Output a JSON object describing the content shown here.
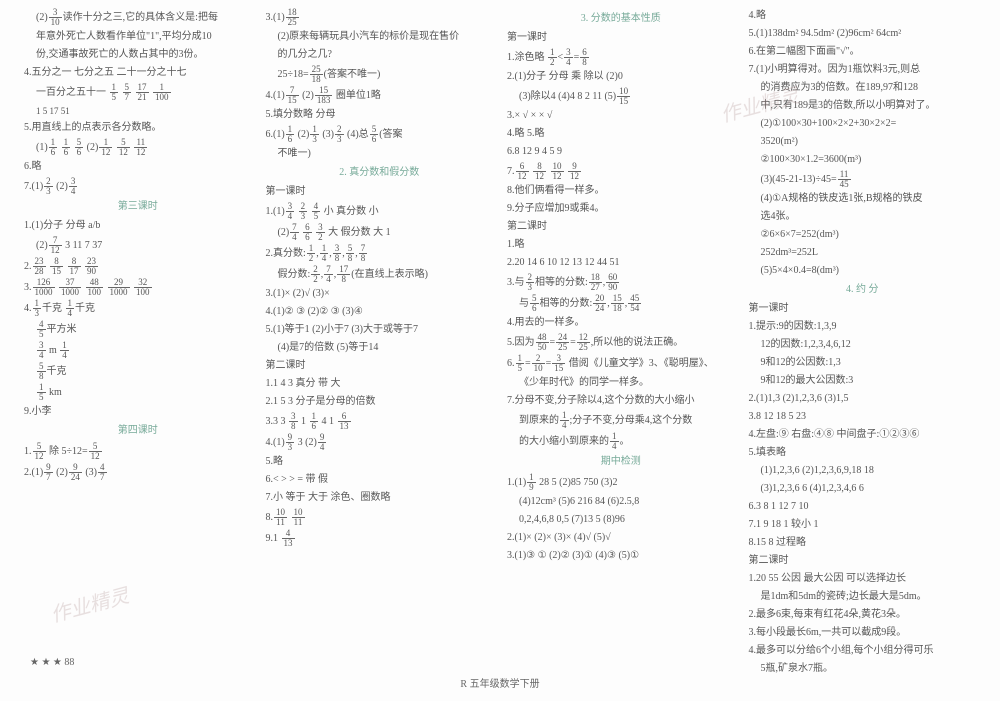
{
  "footer": "R 五年级数学下册",
  "pagenum": "★ ★ ★ 88",
  "stamp": "作业精灵",
  "col1": [
    {
      "t": "(2)3/10读作十分之三,它的具体含义是:把每",
      "cls": "indent1"
    },
    {
      "t": "年意外死亡人数看作单位\"1\",平均分成10",
      "cls": "indent1"
    },
    {
      "t": "份,交通事故死亡的人数占其中的3份。",
      "cls": "indent1"
    },
    {
      "t": "4.五分之一  七分之五  二十一分之十七",
      "cls": ""
    },
    {
      "t": "一百分之五十一  1/5  5/7  17/21  1/100",
      "cls": "indent1"
    },
    {
      "t": "1 5  17 51",
      "cls": "indent1 sm"
    },
    {
      "t": "5.用直线上的点表示各分数略。",
      "cls": ""
    },
    {
      "t": "(1)1/6  1/6  5/6  (2)1/12  5/12  11/12",
      "cls": "indent1"
    },
    {
      "t": "6.略",
      "cls": ""
    },
    {
      "t": "7.(1)2/3  (2)3/4",
      "cls": ""
    },
    {
      "t": "第三课时",
      "cls": "section-title"
    },
    {
      "t": "1.(1)分子  分母  a/b",
      "cls": ""
    },
    {
      "t": "(2)7/12  3  11  7  37",
      "cls": "indent1"
    },
    {
      "t": "2.23/28  8/15  8/17  23/90",
      "cls": ""
    },
    {
      "t": "3.126/1000  37/1000  48/100  29/1000  32/100",
      "cls": ""
    },
    {
      "t": "4.1/3千克  1/4千克",
      "cls": ""
    },
    {
      "t": "4/5平方米",
      "cls": "indent1"
    },
    {
      "t": "3/4 m  1/4",
      "cls": "indent1"
    },
    {
      "t": "5/8千克",
      "cls": "indent1"
    },
    {
      "t": "1/5 km",
      "cls": "indent1"
    },
    {
      "t": "9.小李",
      "cls": ""
    },
    {
      "t": "第四课时",
      "cls": "section-title"
    },
    {
      "t": "1.5/12  除  5÷12=5/12",
      "cls": ""
    },
    {
      "t": "2.(1)9/7  (2)9/24  (3)4/7",
      "cls": ""
    }
  ],
  "col2": [
    {
      "t": "3.(1)18/25",
      "cls": ""
    },
    {
      "t": "(2)原来每辆玩具小汽车的标价是现在售价",
      "cls": "indent1"
    },
    {
      "t": "的几分之几?",
      "cls": "indent1"
    },
    {
      "t": "25÷18=25/18(答案不唯一)",
      "cls": "indent1"
    },
    {
      "t": "4.(1)7/15  (2)15/183  圈单位1略",
      "cls": ""
    },
    {
      "t": "5.填分数略  分母",
      "cls": ""
    },
    {
      "t": "6.(1)1/6  (2)1/3  (3)2/3  (4)总5/6(答案",
      "cls": ""
    },
    {
      "t": "不唯一)",
      "cls": "indent1"
    },
    {
      "t": "2. 真分数和假分数",
      "cls": "section-title"
    },
    {
      "t": "第一课时",
      "cls": ""
    },
    {
      "t": "1.(1)3/4  2/3  4/5  小  真分数  小",
      "cls": ""
    },
    {
      "t": "(2)7/4  6/6  3/2  大  假分数  大  1",
      "cls": "indent1"
    },
    {
      "t": "2.真分数:1/2,1/4,3/8,5/8,7/8",
      "cls": ""
    },
    {
      "t": "假分数:2/2,7/4,17/8(在直线上表示略)",
      "cls": "indent1"
    },
    {
      "t": "3.(1)×  (2)√  (3)×",
      "cls": ""
    },
    {
      "t": "4.(1)②  ③  (2)②  ③  (3)④",
      "cls": ""
    },
    {
      "t": "5.(1)等于1  (2)小于7  (3)大于或等于7",
      "cls": ""
    },
    {
      "t": "(4)是7的倍数  (5)等于14",
      "cls": "indent1"
    },
    {
      "t": "第二课时",
      "cls": ""
    },
    {
      "t": "1.1  4  3  真分  带  大",
      "cls": ""
    },
    {
      "t": "2.1  5  3  分子是分母的倍数",
      "cls": ""
    },
    {
      "t": "3.3  3 3/8  1 1/6  4  1 6/13",
      "cls": ""
    },
    {
      "t": "4.(1)9/3  3  (2)9/4",
      "cls": ""
    },
    {
      "t": "5.略",
      "cls": ""
    },
    {
      "t": "6.<  >  >  =  带  假",
      "cls": ""
    },
    {
      "t": "7.小  等于  大于  涂色、圈数略",
      "cls": ""
    },
    {
      "t": "8.10/11 10/11",
      "cls": ""
    },
    {
      "t": "9.1 4/13",
      "cls": ""
    }
  ],
  "col3": [
    {
      "t": "3. 分数的基本性质",
      "cls": "section-title"
    },
    {
      "t": "第一课时",
      "cls": ""
    },
    {
      "t": "1.涂色略  1/2<3/4=6/8",
      "cls": ""
    },
    {
      "t": "2.(1)分子  分母  乘  除以  (2)0",
      "cls": ""
    },
    {
      "t": "(3)除以4  (4)4  8  2  11  (5)10/15",
      "cls": "indent1"
    },
    {
      "t": "3.×  √  ×  ×  √",
      "cls": ""
    },
    {
      "t": "4.略  5.略",
      "cls": ""
    },
    {
      "t": "6.8  12  9  4  5  9",
      "cls": ""
    },
    {
      "t": "7.6/12  8/12  10/12  9/12",
      "cls": ""
    },
    {
      "t": "8.他们俩看得一样多。",
      "cls": ""
    },
    {
      "t": "9.分子应增加9或乘4。",
      "cls": ""
    },
    {
      "t": "第二课时",
      "cls": ""
    },
    {
      "t": "1.略",
      "cls": ""
    },
    {
      "t": "2.20  14  6  10  12  13  12  44  51",
      "cls": ""
    },
    {
      "t": "3.与2/3相等的分数:18/27,60/90",
      "cls": ""
    },
    {
      "t": "与5/6相等的分数:20/24,15/18,45/54",
      "cls": "indent1"
    },
    {
      "t": "4.用去的一样多。",
      "cls": ""
    },
    {
      "t": "5.因为48/50=24/25=12/25,所以他的说法正确。",
      "cls": ""
    },
    {
      "t": "6.1/5=2/10=3/15  借阅《儿童文学》3、《聪明屋》、",
      "cls": ""
    },
    {
      "t": "《少年时代》的同学一样多。",
      "cls": "indent1"
    },
    {
      "t": "7.分母不变,分子除以4,这个分数的大小缩小",
      "cls": ""
    },
    {
      "t": "到原来的1/4;分子不变,分母乘4,这个分数",
      "cls": "indent1"
    },
    {
      "t": "的大小缩小到原来的1/4。",
      "cls": "indent1"
    },
    {
      "t": "期中检测",
      "cls": "section-title"
    },
    {
      "t": "1.(1)1/9  28  5  (2)85  750  (3)2",
      "cls": ""
    },
    {
      "t": "(4)12cm³  (5)6  216  84  (6)2.5,8",
      "cls": "indent1"
    },
    {
      "t": "0,2,4,6,8  0,5  (7)13  5  (8)96",
      "cls": "indent1"
    },
    {
      "t": "2.(1)×  (2)×  (3)×  (4)√  (5)√",
      "cls": ""
    },
    {
      "t": "3.(1)③  ①  (2)②  (3)①  (4)③  (5)①",
      "cls": ""
    }
  ],
  "col4": [
    {
      "t": "4.略",
      "cls": ""
    },
    {
      "t": "5.(1)138dm²  94.5dm²  (2)96cm²  64cm²",
      "cls": ""
    },
    {
      "t": "6.在第二幅图下面画\"√\"。",
      "cls": ""
    },
    {
      "t": "7.(1)小明算得对。因为1瓶饮料3元,则总",
      "cls": ""
    },
    {
      "t": "的消费应为3的倍数。在189,97和128",
      "cls": "indent1"
    },
    {
      "t": "中,只有189是3的倍数,所以小明算对了。",
      "cls": "indent1"
    },
    {
      "t": "(2)①100×30+100×2×2+30×2×2=",
      "cls": "indent1"
    },
    {
      "t": "3520(m²)",
      "cls": "indent1"
    },
    {
      "t": "②100×30×1.2=3600(m³)",
      "cls": "indent1"
    },
    {
      "t": "(3)(45-21-13)÷45=11/45",
      "cls": "indent1"
    },
    {
      "t": "(4)①A规格的铁皮选1张,B规格的铁皮",
      "cls": "indent1"
    },
    {
      "t": "选4张。",
      "cls": "indent1"
    },
    {
      "t": "②6×6×7=252(dm³)",
      "cls": "indent1"
    },
    {
      "t": "252dm³=252L",
      "cls": "indent1"
    },
    {
      "t": "(5)5×4×0.4=8(dm³)",
      "cls": "indent1"
    },
    {
      "t": "4. 约    分",
      "cls": "section-title"
    },
    {
      "t": "第一课时",
      "cls": ""
    },
    {
      "t": "1.提示:9的因数:1,3,9",
      "cls": ""
    },
    {
      "t": "12的因数:1,2,3,4,6,12",
      "cls": "indent1"
    },
    {
      "t": "9和12的公因数:1,3",
      "cls": "indent1"
    },
    {
      "t": "9和12的最大公因数:3",
      "cls": "indent1"
    },
    {
      "t": "2.(1)1,3  (2)1,2,3,6  (3)1,5",
      "cls": ""
    },
    {
      "t": "3.8  12  18  5  23",
      "cls": ""
    },
    {
      "t": "4.左盘:⑨  右盘:④⑧  中间盘子:①②③⑥",
      "cls": ""
    },
    {
      "t": "5.填表略",
      "cls": ""
    },
    {
      "t": "(1)1,2,3,6  (2)1,2,3,6,9,18  18",
      "cls": "indent1"
    },
    {
      "t": "(3)1,2,3,6  6  (4)1,2,3,4,6  6",
      "cls": "indent1"
    },
    {
      "t": "6.3  8  1  12  7  10",
      "cls": ""
    },
    {
      "t": "7.1  9  18  1  较小  1",
      "cls": ""
    },
    {
      "t": "8.15  8  过程略",
      "cls": ""
    },
    {
      "t": "第二课时",
      "cls": ""
    },
    {
      "t": "1.20  55  公因  最大公因  可以选择边长",
      "cls": ""
    },
    {
      "t": "是1dm和5dm的瓷砖;边长最大是5dm。",
      "cls": "indent1"
    },
    {
      "t": "2.最多6束,每束有红花4朵,黄花3朵。",
      "cls": ""
    },
    {
      "t": "3.每小段最长6m,一共可以截成9段。",
      "cls": ""
    },
    {
      "t": "4.最多可以分给6个小组,每个小组分得可乐",
      "cls": ""
    },
    {
      "t": "5瓶,矿泉水7瓶。",
      "cls": "indent1"
    }
  ]
}
